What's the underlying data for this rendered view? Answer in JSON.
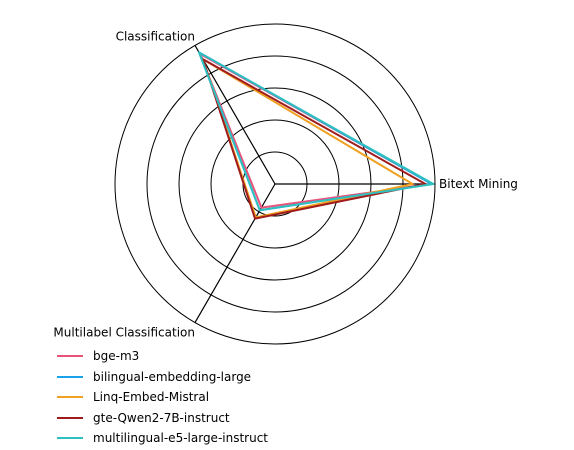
{
  "chart_data": {
    "type": "radar",
    "title": "",
    "axes": [
      "Bitext Mining",
      "Classification",
      "Multilabel Classification"
    ],
    "rings": [
      0.2,
      0.4,
      0.6,
      0.8,
      1.0
    ],
    "range": [
      0,
      1
    ],
    "grid": true,
    "legend_position": "bottom-left",
    "series": [
      {
        "name": "bge-m3",
        "color": "#e8537a",
        "values": [
          0.98,
          0.94,
          0.17
        ]
      },
      {
        "name": "bilingual-embedding-large",
        "color": "#1aa3e8",
        "values": [
          0.98,
          0.95,
          0.19
        ]
      },
      {
        "name": "Linq-Embed-Mistral",
        "color": "#f0a020",
        "values": [
          0.86,
          0.9,
          0.24
        ]
      },
      {
        "name": "gte-Qwen2-7B-instruct",
        "color": "#a01c1c",
        "values": [
          0.94,
          0.9,
          0.25
        ]
      },
      {
        "name": "multilingual-e5-large-instruct",
        "color": "#2ec0c0",
        "values": [
          0.99,
          0.95,
          0.19
        ]
      }
    ]
  }
}
